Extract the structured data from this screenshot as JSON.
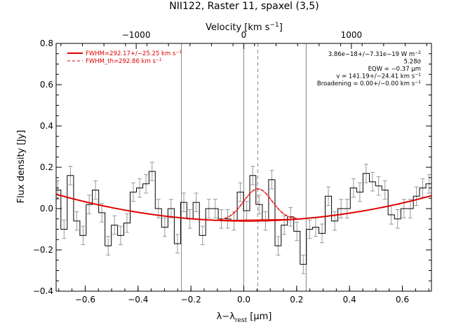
{
  "chart_data": {
    "type": "line",
    "title": "NII122, Raster 11, spaxel (3,5)",
    "xlabel_main": "λ−λ",
    "xlabel_sub": "rest",
    "xlabel_unit": " [μm]",
    "ylabel": "Flux density [Jy]",
    "top_xlabel_main": "Velocity [km s",
    "top_xlabel_sup": "−1",
    "top_xlabel_end": "]",
    "xlim": [
      -0.71,
      0.71
    ],
    "ylim": [
      -0.4,
      0.8
    ],
    "x_ticks": [
      -0.6,
      -0.4,
      -0.2,
      0.0,
      0.2,
      0.4,
      0.6
    ],
    "x_tick_labels": [
      "−0.6",
      "−0.4",
      "−0.2",
      "0.0",
      "0.2",
      "0.4",
      "0.6"
    ],
    "y_ticks": [
      -0.4,
      -0.2,
      0.0,
      0.2,
      0.4,
      0.6,
      0.8
    ],
    "y_tick_labels": [
      "−0.4",
      "−0.2",
      "0.0",
      "0.2",
      "0.4",
      "0.6",
      "0.8"
    ],
    "top_ticks_x": [
      -0.407,
      0.0,
      0.407
    ],
    "top_tick_labels": [
      "−1000",
      "0",
      "1000"
    ],
    "vlines_solid": [
      -0.236,
      0.0,
      0.236
    ],
    "vline_dashed": 0.053,
    "spectrum": {
      "x": [
        -0.704,
        -0.68,
        -0.656,
        -0.632,
        -0.608,
        -0.585,
        -0.561,
        -0.537,
        -0.513,
        -0.489,
        -0.466,
        -0.442,
        -0.418,
        -0.394,
        -0.37,
        -0.347,
        -0.323,
        -0.299,
        -0.275,
        -0.251,
        -0.227,
        -0.204,
        -0.18,
        -0.156,
        -0.132,
        -0.108,
        -0.085,
        -0.061,
        -0.037,
        -0.013,
        0.011,
        0.034,
        0.058,
        0.082,
        0.106,
        0.13,
        0.153,
        0.177,
        0.201,
        0.225,
        0.249,
        0.272,
        0.296,
        0.32,
        0.344,
        0.368,
        0.391,
        0.415,
        0.439,
        0.463,
        0.487,
        0.51,
        0.534,
        0.558,
        0.582,
        0.606,
        0.63,
        0.653,
        0.677,
        0.701
      ],
      "y": [
        0.09,
        -0.1,
        0.16,
        -0.06,
        -0.13,
        0.02,
        0.09,
        -0.02,
        -0.18,
        -0.08,
        -0.13,
        -0.07,
        0.08,
        0.1,
        0.12,
        0.18,
        0.0,
        -0.09,
        0.0,
        -0.17,
        0.03,
        -0.05,
        0.03,
        -0.13,
        0.0,
        0.0,
        -0.05,
        -0.05,
        -0.06,
        0.08,
        -0.01,
        0.16,
        0.02,
        -0.06,
        0.14,
        -0.18,
        -0.08,
        -0.04,
        -0.11,
        -0.27,
        -0.1,
        -0.09,
        -0.12,
        0.06,
        -0.06,
        0.0,
        0.0,
        0.1,
        0.08,
        0.17,
        0.13,
        0.11,
        0.09,
        -0.03,
        -0.05,
        0.0,
        0.0,
        0.06,
        0.1,
        0.12
      ],
      "err": 0.045
    },
    "series": [
      {
        "name": "FWHM=292.17+/−25.25 km s",
        "name_sup": "−1",
        "style": "solid",
        "color": "#e00000"
      },
      {
        "name": "FWHM_th=292.86 km s",
        "name_sup": "−1",
        "style": "dashed",
        "color": "#e00000"
      }
    ],
    "fit": {
      "baseline_coeffs": [
        -0.06,
        -0.005,
        0.25
      ],
      "line_center": 0.053,
      "line_amp": 0.155,
      "line_sigma": 0.054,
      "line_range": [
        -0.1,
        0.2
      ]
    },
    "annotations": [
      {
        "text": "3.86e−18+/−7.31e−19 W m",
        "sup": "−2"
      },
      {
        "text": "5.28σ",
        "sup": ""
      },
      {
        "text": "EQW = −0.37 μm",
        "sup": ""
      },
      {
        "text": "v = 141.19+/−24.41 km s",
        "sup": "−1"
      },
      {
        "text": "Broadening = 0.00+/−0.00 km s",
        "sup": "−1"
      }
    ],
    "colors": {
      "spectrum": "#000000",
      "errorbars": "#999999",
      "fit": "#e00000",
      "vlines": "#888888"
    }
  }
}
